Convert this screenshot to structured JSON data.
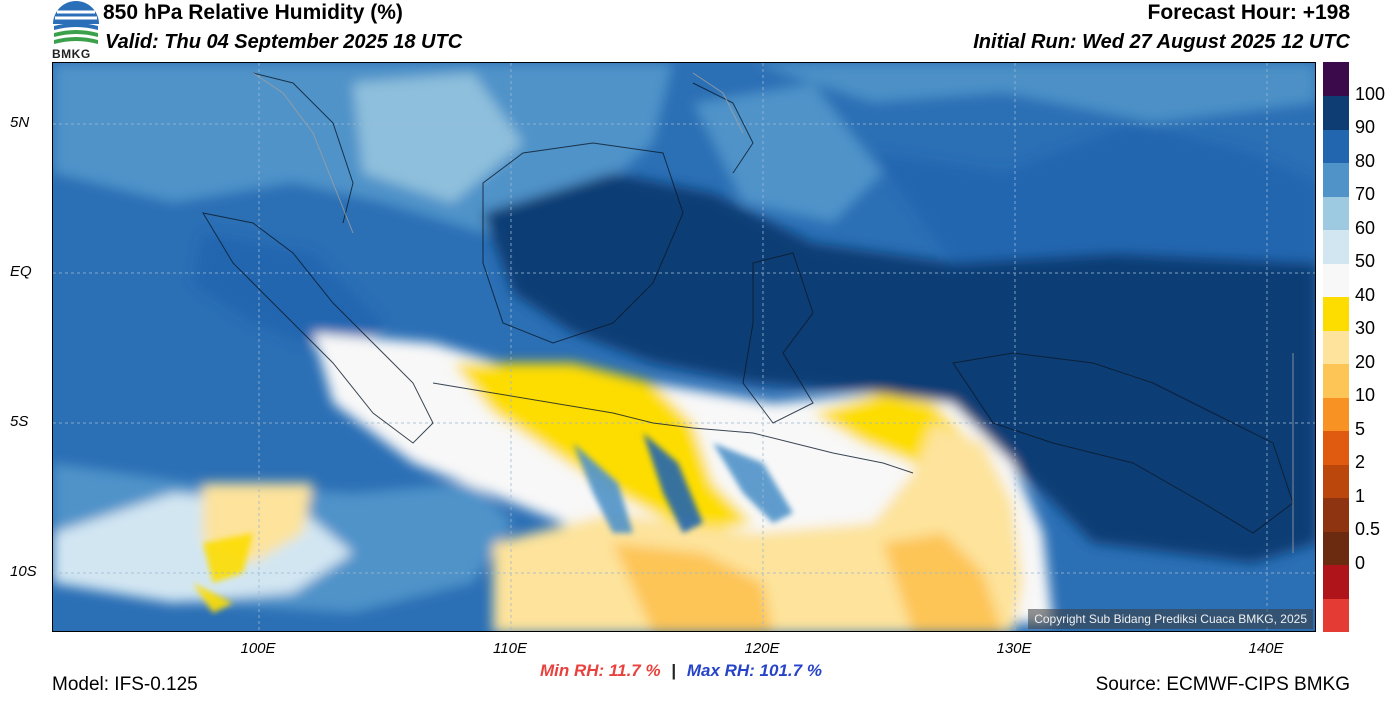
{
  "header": {
    "title": "850 hPa Relative Humidity (%)",
    "valid": "Valid: Thu 04 September 2025 18 UTC",
    "forecast_hour": "Forecast Hour: +198",
    "initial_run": "Initial Run: Wed 27 August 2025 12 UTC",
    "logo_text": "BMKG"
  },
  "map": {
    "lat_labels": [
      "5N",
      "EQ",
      "5S",
      "10S"
    ],
    "lon_labels": [
      "100E",
      "110E",
      "120E",
      "130E",
      "140E"
    ],
    "copyright": "Copyright Sub Bidang Prediksi Cuaca BMKG, 2025"
  },
  "colorbar": {
    "labels": [
      "100",
      "90",
      "80",
      "70",
      "60",
      "50",
      "40",
      "30",
      "20",
      "10",
      "5",
      "2",
      "1",
      "0.5",
      "0"
    ],
    "colors": [
      "#e53b35",
      "#b0141b",
      "#6a2b10",
      "#8f3410",
      "#bb470d",
      "#e05a0f",
      "#f79223",
      "#fdc556",
      "#fde39b",
      "#fddd00",
      "#f8f8f8",
      "#d2e6f2",
      "#9ecae1",
      "#4f93c9",
      "#2266b0",
      "#0e3d74",
      "#3b0a4a"
    ]
  },
  "footer": {
    "min_rh": "Min RH:  11.7 %",
    "separator": "|",
    "max_rh": "Max RH: 101.7 %",
    "model": "Model: IFS-0.125",
    "source": "Source: ECMWF-CIPS BMKG"
  }
}
